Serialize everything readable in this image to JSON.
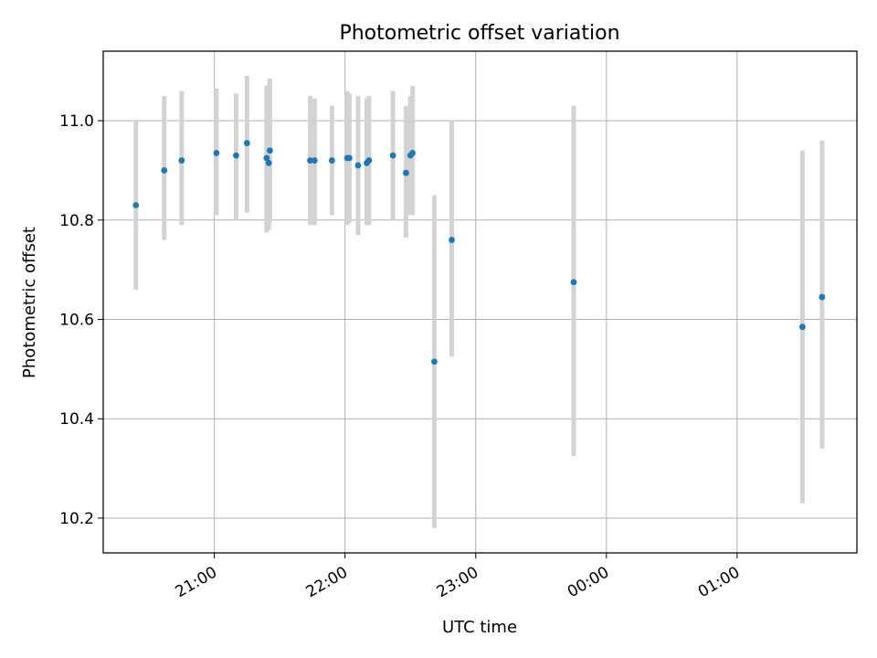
{
  "chart_data": {
    "type": "scatter",
    "title": "Photometric offset variation",
    "xlabel": "UTC time",
    "ylabel": "Photometric offset",
    "x_ticks": [
      "21:00",
      "22:00",
      "23:00",
      "00:00",
      "01:00"
    ],
    "y_ticks": [
      "10.2",
      "10.4",
      "10.6",
      "10.8",
      "11.0"
    ],
    "ylim": [
      10.13,
      11.14
    ],
    "xlim": [
      "20:09",
      "01:55"
    ],
    "grid": true,
    "marker_color": "#1f77b4",
    "errorbar_color": "#d3d3d3",
    "points": [
      {
        "x": "20:24",
        "y": 10.83,
        "lo": 10.66,
        "hi": 11.0
      },
      {
        "x": "20:37",
        "y": 10.9,
        "lo": 10.76,
        "hi": 11.05
      },
      {
        "x": "20:45",
        "y": 10.92,
        "lo": 10.79,
        "hi": 11.06
      },
      {
        "x": "21:01",
        "y": 10.935,
        "lo": 10.81,
        "hi": 11.065
      },
      {
        "x": "21:10",
        "y": 10.93,
        "lo": 10.8,
        "hi": 11.055
      },
      {
        "x": "21:15",
        "y": 10.955,
        "lo": 10.815,
        "hi": 11.09
      },
      {
        "x": "21:24",
        "y": 10.925,
        "lo": 10.775,
        "hi": 11.07
      },
      {
        "x": "21:25",
        "y": 10.915,
        "lo": 10.78,
        "hi": 11.075
      },
      {
        "x": "21:25.5",
        "y": 10.94,
        "lo": 10.795,
        "hi": 11.085
      },
      {
        "x": "21:44",
        "y": 10.92,
        "lo": 10.79,
        "hi": 11.05
      },
      {
        "x": "21:46",
        "y": 10.92,
        "lo": 10.79,
        "hi": 11.045
      },
      {
        "x": "21:54",
        "y": 10.92,
        "lo": 10.81,
        "hi": 11.03
      },
      {
        "x": "22:01",
        "y": 10.925,
        "lo": 10.79,
        "hi": 11.06
      },
      {
        "x": "22:02",
        "y": 10.925,
        "lo": 10.795,
        "hi": 11.055
      },
      {
        "x": "22:06",
        "y": 10.91,
        "lo": 10.77,
        "hi": 11.05
      },
      {
        "x": "22:10",
        "y": 10.915,
        "lo": 10.79,
        "hi": 11.045
      },
      {
        "x": "22:11",
        "y": 10.92,
        "lo": 10.79,
        "hi": 11.05
      },
      {
        "x": "22:22",
        "y": 10.93,
        "lo": 10.8,
        "hi": 11.06
      },
      {
        "x": "22:28",
        "y": 10.895,
        "lo": 10.765,
        "hi": 11.03
      },
      {
        "x": "22:30",
        "y": 10.93,
        "lo": 10.81,
        "hi": 11.05
      },
      {
        "x": "22:31",
        "y": 10.935,
        "lo": 10.81,
        "hi": 11.07
      },
      {
        "x": "22:41",
        "y": 10.515,
        "lo": 10.18,
        "hi": 10.85
      },
      {
        "x": "22:49",
        "y": 10.76,
        "lo": 10.525,
        "hi": 11.0
      },
      {
        "x": "23:45",
        "y": 10.675,
        "lo": 10.325,
        "hi": 11.03
      },
      {
        "x": "01:30",
        "y": 10.585,
        "lo": 10.23,
        "hi": 10.94
      },
      {
        "x": "01:39",
        "y": 10.645,
        "lo": 10.34,
        "hi": 10.96
      }
    ]
  }
}
